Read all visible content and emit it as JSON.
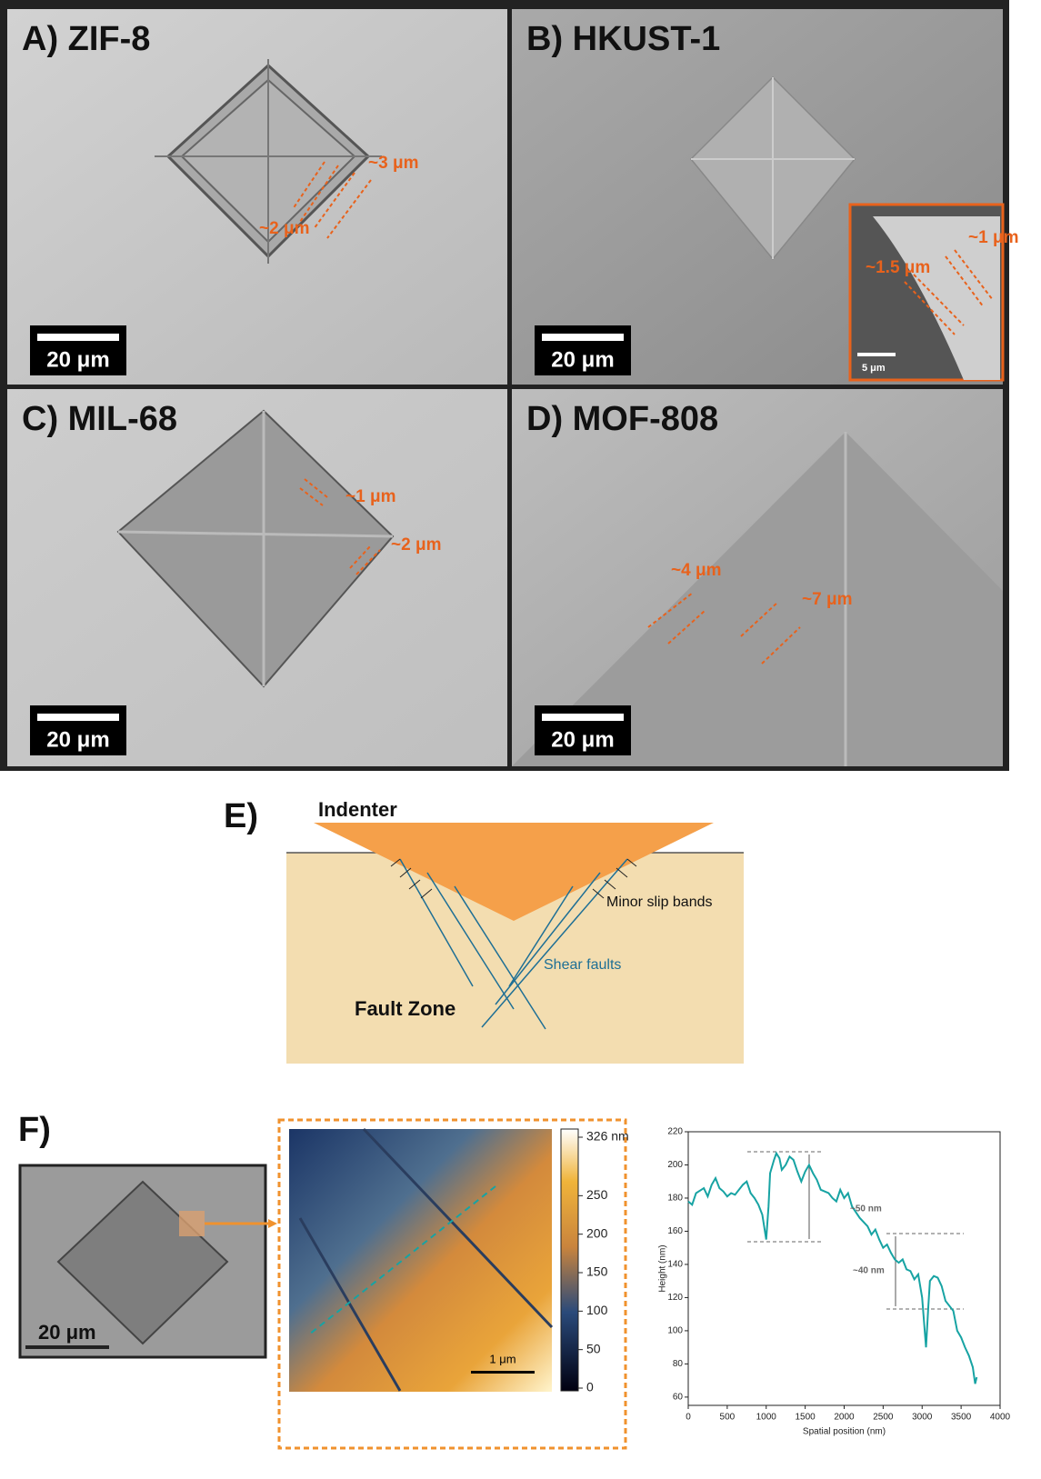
{
  "panels": [
    {
      "label": "A) ZIF-8",
      "scale_bar": "20 μm",
      "annotations": [
        "~3 μm",
        "~2 μm"
      ]
    },
    {
      "label": "B) HKUST-1",
      "scale_bar": "20 μm",
      "annotations": [
        "~1 μm",
        "~1.5 μm"
      ],
      "inset_scale_bar": "5 μm"
    },
    {
      "label": "C) MIL-68",
      "scale_bar": "20 μm",
      "annotations": [
        "~1 μm",
        "~2 μm"
      ]
    },
    {
      "label": "D) MOF-808",
      "scale_bar": "20 μm",
      "annotations": [
        "~4 μm",
        "~7 μm"
      ]
    }
  ],
  "diagram": {
    "label": "E)",
    "indenter": "Indenter",
    "minor_slip_bands": "Minor slip bands",
    "shear_faults": "Shear faults",
    "fault_zone": "Fault Zone"
  },
  "afm": {
    "label": "F)",
    "image_scale_bar": "20 μm",
    "map_scale_bar": "1 μm",
    "colorbar_ticks": [
      {
        "value": 326,
        "label": "326 nm"
      },
      250,
      200,
      150,
      100,
      50,
      0
    ]
  },
  "chart_data": {
    "type": "line",
    "x_label": "Spatial position (nm)",
    "y_label": "Height (nm)",
    "annotations": [
      "~50 nm",
      "~40 nm"
    ],
    "x": [
      0,
      50,
      100,
      200,
      250,
      300,
      350,
      400,
      450,
      500,
      550,
      600,
      700,
      750,
      800,
      850,
      900,
      950,
      1000,
      1030,
      1050,
      1100,
      1130,
      1170,
      1200,
      1250,
      1300,
      1350,
      1400,
      1450,
      1500,
      1550,
      1600,
      1650,
      1700,
      1800,
      1850,
      1900,
      1950,
      2000,
      2050,
      2100,
      2200,
      2300,
      2350,
      2400,
      2450,
      2500,
      2550,
      2600,
      2650,
      2700,
      2750,
      2800,
      2850,
      2900,
      2950,
      3000,
      3050,
      3080,
      3100,
      3150,
      3200,
      3250,
      3300,
      3400,
      3450,
      3500,
      3550,
      3600,
      3650,
      3680,
      3700
    ],
    "series": [
      {
        "color": "#17a3a3",
        "values": [
          178,
          176,
          183,
          186,
          181,
          188,
          192,
          186,
          184,
          181,
          183,
          182,
          188,
          190,
          183,
          180,
          176,
          170,
          155,
          175,
          195,
          203,
          207,
          204,
          197,
          200,
          205,
          203,
          196,
          190,
          196,
          200,
          195,
          191,
          185,
          183,
          180,
          178,
          185,
          180,
          183,
          175,
          168,
          163,
          158,
          161,
          155,
          150,
          152,
          147,
          143,
          141,
          143,
          137,
          136,
          131,
          134,
          120,
          90,
          115,
          130,
          133,
          132,
          127,
          118,
          112,
          100,
          96,
          90,
          85,
          78,
          68,
          72
        ]
      }
    ],
    "xlim": [
      0,
      4000
    ],
    "ylim": [
      55,
      220
    ],
    "xticks": [
      0,
      500,
      1000,
      1500,
      2000,
      2500,
      3000,
      3500,
      4000
    ],
    "yticks": [
      60,
      80,
      100,
      120,
      140,
      160,
      180,
      200,
      220
    ]
  }
}
